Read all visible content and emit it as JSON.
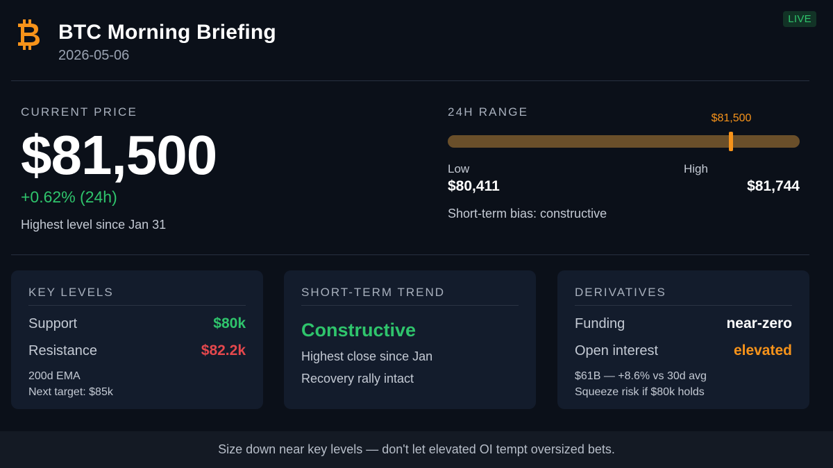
{
  "header": {
    "logo_icon": "bitcoin-icon",
    "title": "BTC Morning Briefing",
    "date": "2026-05-06",
    "live_badge": "LIVE"
  },
  "price": {
    "label": "CURRENT PRICE",
    "value": "$81,500",
    "change": "+0.62% (24h)",
    "note": "Highest level since Jan 31"
  },
  "range": {
    "label": "24H RANGE",
    "low_label": "Low",
    "low_value": "$80,411",
    "high_label": "High",
    "high_value": "$81,744",
    "marker_label": "$81,500",
    "low": 80411,
    "high": 81744,
    "current": 81500,
    "bias": "Short-term bias: constructive"
  },
  "cards": {
    "key_levels": {
      "title": "KEY LEVELS",
      "support_label": "Support",
      "support_value": "$80k",
      "resistance_label": "Resistance",
      "resistance_value": "$82.2k",
      "note1": "200d EMA",
      "note2": "Next target: $85k"
    },
    "trend": {
      "title": "SHORT-TERM TREND",
      "status": "Constructive",
      "line1": "Highest close since Jan",
      "line2": "Recovery rally intact"
    },
    "derivatives": {
      "title": "DERIVATIVES",
      "funding_label": "Funding",
      "funding_value": "near-zero",
      "oi_label": "Open interest",
      "oi_value": "elevated",
      "note1": "$61B — +8.6% vs 30d avg",
      "note2": "Squeeze risk if $80k holds"
    }
  },
  "footer": {
    "text": "Size down near key levels — don't let elevated OI tempt oversized bets."
  },
  "colors": {
    "background": "#0b1019",
    "card": "#131c2c",
    "green": "#2fc46c",
    "red": "#e5484d",
    "orange": "#f7931a",
    "white": "#ffffff"
  }
}
